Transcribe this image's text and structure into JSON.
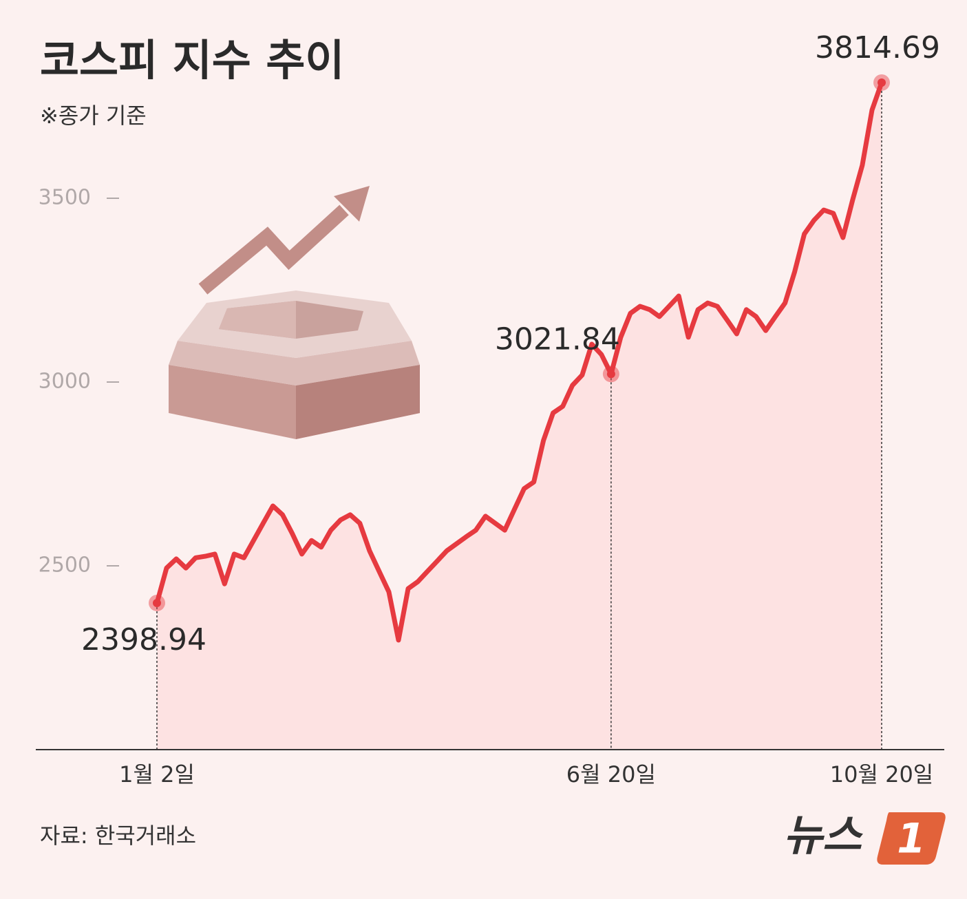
{
  "chart_data": {
    "type": "line",
    "title": "코스피 지수 추이",
    "subtitle": "※종가 기준",
    "source": "자료: 한국거래소",
    "logo_text": "뉴스",
    "logo_number": "1",
    "color": "#e63a40",
    "area_color": "#fde2e2",
    "ylim": [
      2000,
      3900
    ],
    "yticks": [
      2500,
      3000,
      3500
    ],
    "categories": [
      "1월 2일",
      null,
      null,
      null,
      null,
      null,
      null,
      null,
      null,
      null,
      null,
      null,
      null,
      null,
      null,
      null,
      null,
      null,
      null,
      null,
      null,
      null,
      null,
      null,
      null,
      null,
      null,
      null,
      null,
      null,
      null,
      null,
      null,
      null,
      null,
      null,
      null,
      null,
      null,
      null,
      null,
      null,
      null,
      null,
      null,
      null,
      null,
      "6월 20일",
      null,
      null,
      null,
      null,
      null,
      null,
      null,
      null,
      null,
      null,
      null,
      null,
      null,
      null,
      null,
      null,
      null,
      null,
      null,
      null,
      null,
      null,
      null,
      null,
      null,
      null,
      null,
      "10월 20일"
    ],
    "values": [
      2398.94,
      2494,
      2519,
      2494,
      2522,
      2526,
      2532,
      2451,
      2532,
      2522,
      2569,
      2616,
      2663,
      2639,
      2588,
      2532,
      2569,
      2551,
      2597,
      2625,
      2639,
      2616,
      2541,
      2485,
      2429,
      2298,
      2438,
      2457,
      2485,
      2513,
      2541,
      2560,
      2579,
      2597,
      2635,
      2616,
      2597,
      2654,
      2710,
      2728,
      2841,
      2916,
      2934,
      2991,
      3019,
      3103,
      3075,
      3021.84,
      3122,
      3187,
      3206,
      3197,
      3178,
      3206,
      3234,
      3122,
      3197,
      3215,
      3206,
      3169,
      3131,
      3197,
      3178,
      3140,
      3178,
      3215,
      3300,
      3403,
      3440,
      3468,
      3459,
      3393,
      3496,
      3590,
      3740,
      3814.69
    ]
  }
}
